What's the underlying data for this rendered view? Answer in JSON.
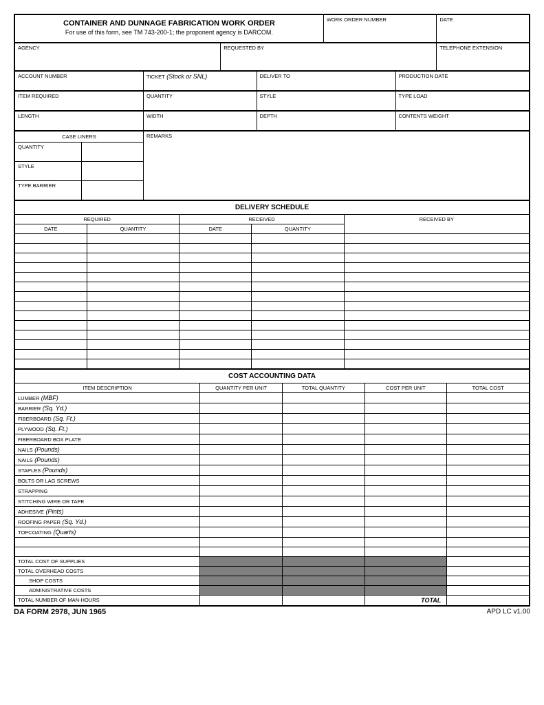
{
  "header": {
    "title": "CONTAINER AND DUNNAGE FABRICATION WORK ORDER",
    "subtitle": "For use of this form, see TM 743-200-1; the proponent agency is DARCOM.",
    "work_order_number_lbl": "WORK ORDER NUMBER",
    "date_lbl": "DATE"
  },
  "row2": {
    "agency_lbl": "AGENCY",
    "requested_by_lbl": "REQUESTED BY",
    "telephone_ext_lbl": "TELEPHONE EXTENSION"
  },
  "row3": {
    "account_number_lbl": "ACCOUNT NUMBER",
    "ticket_lbl": "TICKET",
    "ticket_note": "(Stock or SNL)",
    "deliver_to_lbl": "DELIVER TO",
    "production_date_lbl": "PRODUCTION DATE"
  },
  "row4": {
    "item_required_lbl": "ITEM REQUIRED",
    "quantity_lbl": "QUANTITY",
    "style_lbl": "STYLE",
    "type_load_lbl": "TYPE LOAD"
  },
  "row5": {
    "length_lbl": "LENGTH",
    "width_lbl": "WIDTH",
    "depth_lbl": "DEPTH",
    "contents_weight_lbl": "CONTENTS WEIGHT"
  },
  "case_liners": {
    "header": "CASE LINERS",
    "quantity_lbl": "QUANTITY",
    "style_lbl": "STYLE",
    "type_barrier_lbl": "TYPE BARRIER",
    "remarks_lbl": "REMARKS"
  },
  "delivery": {
    "header": "DELIVERY SCHEDULE",
    "required_lbl": "REQUIRED",
    "received_lbl": "RECEIVED",
    "received_by_lbl": "RECEIVED BY",
    "date_lbl": "DATE",
    "quantity_lbl": "QUANTITY",
    "row_count": 14
  },
  "cost": {
    "header": "COST ACCOUNTING DATA",
    "item_desc_lbl": "ITEM DESCRIPTION",
    "qty_per_unit_lbl": "QUANTITY PER UNIT",
    "total_qty_lbl": "TOTAL QUANTITY",
    "cost_per_unit_lbl": "COST PER UNIT",
    "total_cost_lbl": "TOTAL COST",
    "items": [
      {
        "name": "LUMBER",
        "note": "(MBF)"
      },
      {
        "name": "BARRIER",
        "note": "(Sq. Yd.)"
      },
      {
        "name": "FIBERBOARD",
        "note": "(Sq. Ft.)"
      },
      {
        "name": "PLYWOOD",
        "note": "(Sq. Ft.)"
      },
      {
        "name": "FIBERBOARD BOX PLATE",
        "note": ""
      },
      {
        "name": "NAILS",
        "note": "(Pounds)"
      },
      {
        "name": "NAILS",
        "note": "(Pounds)"
      },
      {
        "name": "STAPLES",
        "note": "(Pounds)"
      },
      {
        "name": "BOLTS OR LAG SCREWS",
        "note": ""
      },
      {
        "name": "STRAPPING",
        "note": ""
      },
      {
        "name": "STITCHING WIRE OR TAPE",
        "note": ""
      },
      {
        "name": "ADHESIVE",
        "note": "(Pints)"
      },
      {
        "name": "ROOFING PAPER",
        "note": "(Sq. Yd.)"
      },
      {
        "name": "TOPCOATING",
        "note": "(Quarts)"
      }
    ],
    "blank_rows": 2,
    "total_supplies_lbl": "TOTAL COST OF SUPPLIES",
    "total_overhead_lbl": "TOTAL OVERHEAD COSTS",
    "shop_costs_lbl": "SHOP COSTS",
    "admin_costs_lbl": "ADMINISTRATIVE COSTS",
    "total_manhours_lbl": "TOTAL NUMBER OF MAN-HOURS",
    "total_lbl": "TOTAL"
  },
  "footer": {
    "left": "DA FORM 2978, JUN 1965",
    "right": "APD LC v1.00"
  }
}
